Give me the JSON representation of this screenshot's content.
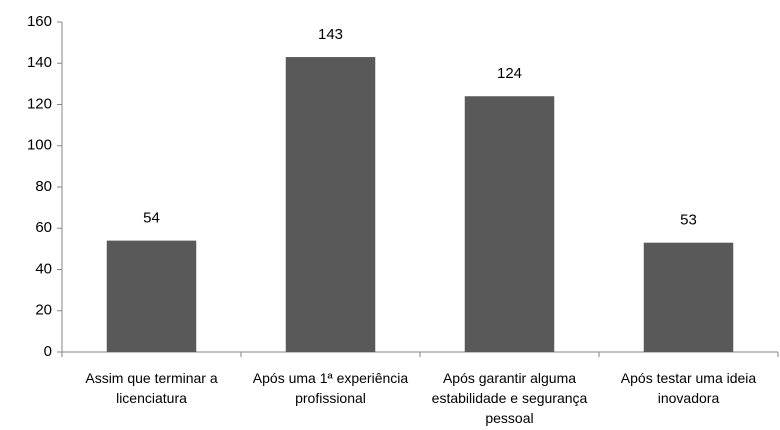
{
  "chart_data": {
    "type": "bar",
    "categories": [
      "Assim que terminar a licenciatura",
      "Após uma 1ª experiência profissional",
      "Após garantir alguma estabilidade e segurança pessoal",
      "Após testar uma ideia inovadora"
    ],
    "values": [
      54,
      143,
      124,
      53
    ],
    "color": "#595959",
    "ylim": [
      0,
      160
    ],
    "yticks": [
      0,
      20,
      40,
      60,
      80,
      100,
      120,
      140,
      160
    ],
    "grid": false,
    "data_labels": true
  }
}
